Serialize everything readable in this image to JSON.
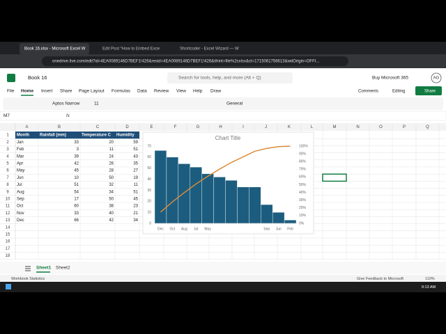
{
  "browser": {
    "tabs": [
      "Book 16.xlsx - Microsoft Excel W",
      "Edit Post “How to Embed Exce",
      "Shortcoder - Excel Wizard — W"
    ],
    "url": "onedrive.live.com/edit?id=4EA0089146D7BEF1!426&resid=4EA0089146D7BEF1!426&ithint=file%2cxlsx&ct=1715061756613&wdOrigin=OFFI..."
  },
  "app": {
    "file_name": "Book 16",
    "search": "Search for tools, help, and more (Alt + Q)",
    "buy": "Buy Microsoft 365",
    "avatar": "AG"
  },
  "menu": [
    "File",
    "Home",
    "Insert",
    "Share",
    "Page Layout",
    "Formulas",
    "Data",
    "Review",
    "View",
    "Help",
    "Draw"
  ],
  "actions": [
    "Comments",
    "Editing",
    "Share"
  ],
  "toolbar": {
    "font": "Aptos Narrow",
    "size": "11",
    "format": "General"
  },
  "formula_bar": {
    "cell": "M7",
    "fx": "fx"
  },
  "sheet": {
    "columns": [
      "A",
      "B",
      "C",
      "D",
      "E",
      "F",
      "G",
      "H",
      "I",
      "J",
      "K",
      "L",
      "M",
      "N",
      "O",
      "P",
      "Q"
    ],
    "rows": [
      1,
      2,
      3,
      4,
      5,
      6,
      7,
      8,
      9,
      10,
      11,
      12,
      13,
      14,
      15,
      16,
      17,
      18
    ],
    "header": [
      "Month",
      "Rainfall (mm)",
      "Temperature C",
      "Humidity"
    ],
    "data": [
      [
        "Jan",
        33,
        20,
        59
      ],
      [
        "Feb",
        3,
        11,
        51
      ],
      [
        "Mar",
        39,
        24,
        43
      ],
      [
        "Apr",
        42,
        26,
        35
      ],
      [
        "May",
        45,
        28,
        27
      ],
      [
        "Jun",
        10,
        50,
        19
      ],
      [
        "Jul",
        51,
        32,
        11
      ],
      [
        "Aug",
        54,
        34,
        51
      ],
      [
        "Sep",
        17,
        50,
        45
      ],
      [
        "Oct",
        60,
        38,
        23
      ],
      [
        "Nov",
        33,
        40,
        21
      ],
      [
        "Dec",
        66,
        42,
        34
      ]
    ]
  },
  "chart_data": {
    "type": "pareto",
    "title": "Chart Title",
    "categories": [
      "Dec",
      "Oct",
      "Aug",
      "Jul",
      "May",
      null,
      null,
      null,
      null,
      "Sep",
      "Jun",
      "Feb"
    ],
    "series": [
      {
        "color": "#1c5d7f",
        "values": [
          66,
          60,
          54,
          51,
          45,
          42,
          39,
          33,
          33,
          17,
          10,
          3
        ]
      },
      {
        "color": "#d98b3a",
        "axis": "y2",
        "values": [
          14.6,
          27.8,
          39.7,
          51.0,
          60.9,
          70.2,
          78.8,
          86.1,
          93.4,
          97.1,
          99.3,
          100
        ]
      }
    ],
    "ylim": [
      0,
      70
    ],
    "yticks": [
      0,
      10,
      20,
      30,
      40,
      50,
      60,
      70
    ],
    "y2lim": [
      0,
      100
    ],
    "y2ticks": [
      {
        "value": 0,
        "label": "0%"
      },
      {
        "value": 10,
        "label": "10%"
      },
      {
        "value": 20,
        "label": "20%"
      },
      {
        "value": 30,
        "label": "30%"
      },
      {
        "value": 40,
        "label": "40%"
      },
      {
        "value": 50,
        "label": "50%"
      },
      {
        "value": 60,
        "label": "60%"
      },
      {
        "value": 70,
        "label": "70%"
      },
      {
        "value": 80,
        "label": "80%"
      },
      {
        "value": 90,
        "label": "90%"
      },
      {
        "value": 100,
        "label": "100%"
      }
    ]
  },
  "sheet_tabs": [
    "Sheet1",
    "Sheet2"
  ],
  "status": {
    "left": "Workbook Statistics",
    "feedback": "Give Feedback to Microsoft",
    "zoom": "110%"
  },
  "taskbar": {
    "time": "9:13 AM"
  }
}
